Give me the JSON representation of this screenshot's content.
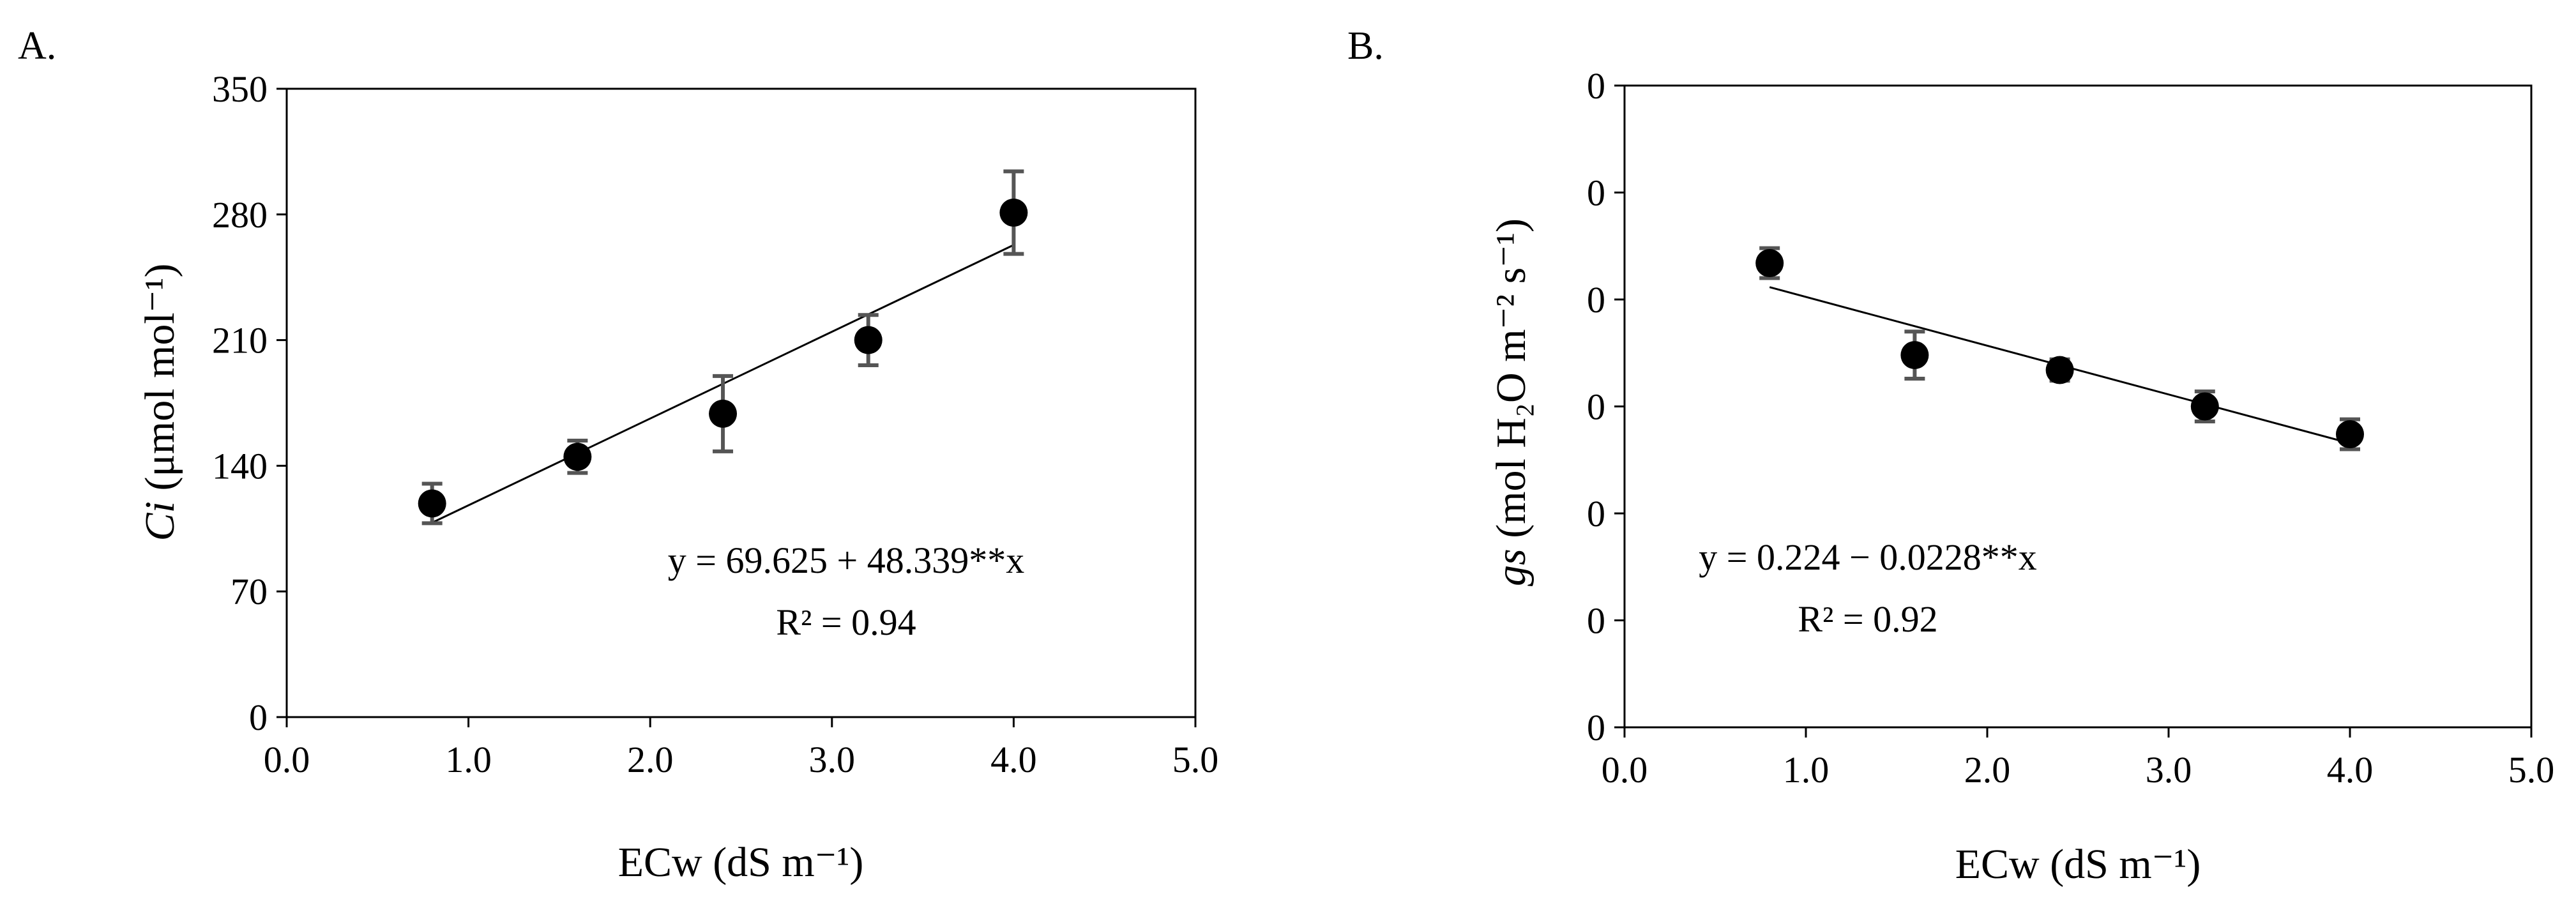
{
  "chart_data": [
    {
      "type": "scatter",
      "panel_label": "A.",
      "xlabel": "ECw (dS m⁻¹)",
      "ylabel": "Ci (μmol mol⁻¹)",
      "ylabel_italic": "Ci",
      "ylabel_rest": " (μmol mol⁻¹)",
      "x_ticks": [
        "0.0",
        "1.0",
        "2.0",
        "3.0",
        "4.0",
        "5.0"
      ],
      "y_ticks": [
        "0",
        "70",
        "140",
        "210",
        "280",
        "350"
      ],
      "xlim": [
        0,
        5
      ],
      "ylim": [
        0,
        350
      ],
      "x": [
        0.8,
        1.6,
        2.4,
        3.2,
        4.0
      ],
      "y": [
        119,
        145,
        169,
        210,
        281
      ],
      "error": [
        11,
        9,
        21,
        14,
        23
      ],
      "trendline": {
        "intercept": 69.625,
        "slope": 48.339,
        "x_range": [
          0.8,
          4.0
        ]
      },
      "equation": "y = 69.625 + 48.339**x",
      "r2": "R² = 0.94",
      "grid": false,
      "legend": "none"
    },
    {
      "type": "scatter",
      "panel_label": "B.",
      "xlabel": "ECw (dS m⁻¹)",
      "ylabel": "gs (mol H₂O m⁻² s⁻¹)",
      "ylabel_italic": "gs",
      "ylabel_rest": " (mol H₂O m⁻² s⁻¹)",
      "x_ticks": [
        "0.0",
        "1.0",
        "2.0",
        "3.0",
        "4.0",
        "5.0"
      ],
      "y_ticks": [
        "0",
        "0",
        "0",
        "0",
        "0",
        "0",
        "0"
      ],
      "xlim": [
        0,
        5
      ],
      "ylim": [
        0,
        0.3
      ],
      "x": [
        0.8,
        1.6,
        2.4,
        3.2,
        4.0
      ],
      "y": [
        0.217,
        0.174,
        0.167,
        0.15,
        0.137
      ],
      "error": [
        0.007,
        0.011,
        0.005,
        0.007,
        0.007
      ],
      "trendline": {
        "intercept": 0.224,
        "slope": -0.0228,
        "x_range": [
          0.8,
          4.0
        ]
      },
      "equation": "y = 0.224 − 0.0228**x",
      "r2": "R² = 0.92",
      "grid": false,
      "legend": "none"
    }
  ]
}
